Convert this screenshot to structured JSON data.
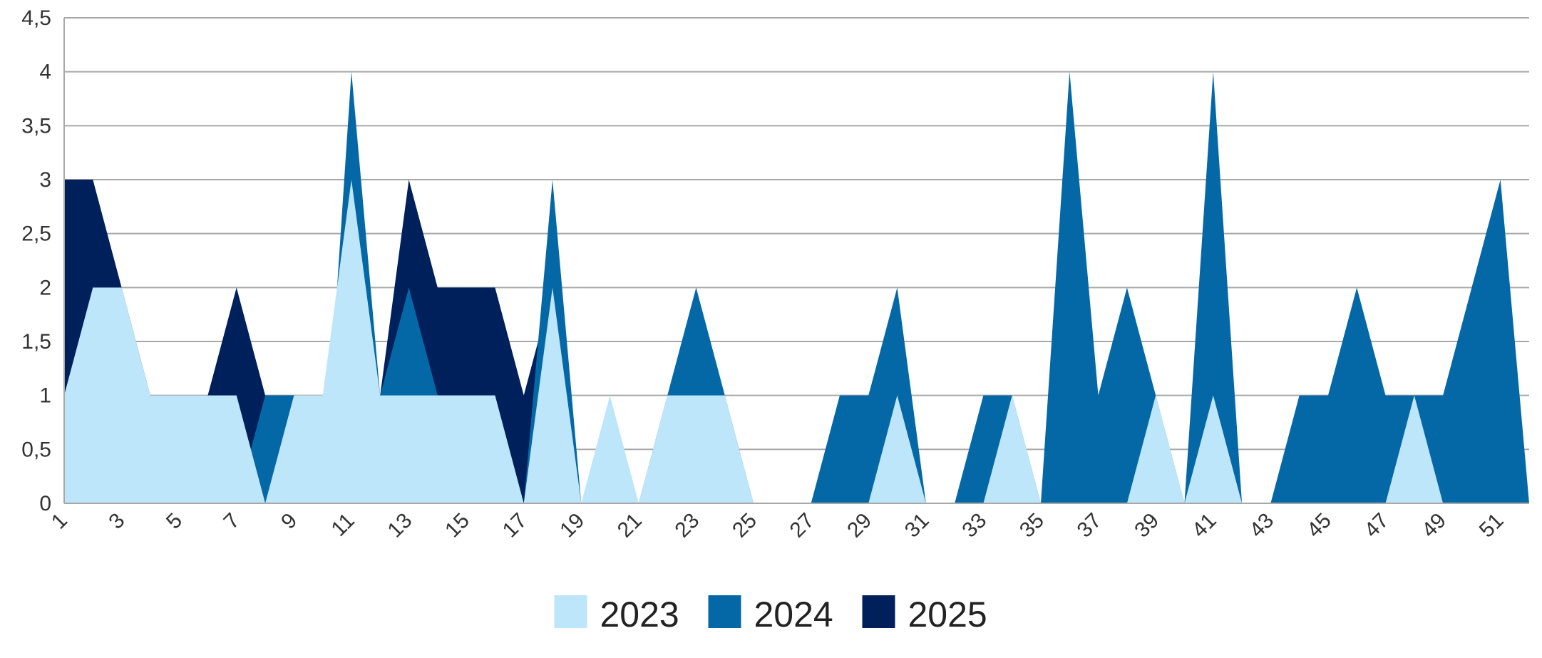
{
  "chart_data": {
    "type": "area",
    "title": "",
    "xlabel": "",
    "ylabel": "",
    "x": [
      1,
      2,
      3,
      4,
      5,
      6,
      7,
      8,
      9,
      10,
      11,
      12,
      13,
      14,
      15,
      16,
      17,
      18,
      19,
      20,
      21,
      22,
      23,
      24,
      25,
      26,
      27,
      28,
      29,
      30,
      31,
      32,
      33,
      34,
      35,
      36,
      37,
      38,
      39,
      40,
      41,
      42,
      43,
      44,
      45,
      46,
      47,
      48,
      49,
      50,
      51,
      52
    ],
    "x_tick_labels": [
      "1",
      "3",
      "5",
      "7",
      "9",
      "11",
      "13",
      "15",
      "17",
      "19",
      "21",
      "23",
      "25",
      "27",
      "29",
      "31",
      "33",
      "35",
      "37",
      "39",
      "41",
      "43",
      "45",
      "47",
      "49",
      "51"
    ],
    "y_tick_labels": [
      "0",
      "0,5",
      "1",
      "1,5",
      "2",
      "2,5",
      "3",
      "3,5",
      "4",
      "4,5"
    ],
    "ylim": [
      0,
      4.5
    ],
    "grid": "horizontal",
    "legend_position": "bottom",
    "series": [
      {
        "name": "2023",
        "color": "#bde6fb",
        "values": [
          1,
          2,
          2,
          1,
          1,
          1,
          1,
          0,
          1,
          1,
          3,
          1,
          1,
          1,
          1,
          1,
          0,
          2,
          0,
          1,
          0,
          1,
          1,
          1,
          0,
          0,
          0,
          0,
          0,
          1,
          0,
          0,
          0,
          1,
          0,
          0,
          0,
          0,
          1,
          0,
          1,
          0,
          0,
          0,
          0,
          0,
          0,
          1,
          0,
          0,
          0,
          0
        ]
      },
      {
        "name": "2024",
        "color": "#0568a6",
        "values": [
          0,
          0,
          0,
          0,
          0,
          0,
          0,
          1,
          1,
          0,
          4,
          1,
          2,
          1,
          1,
          1,
          0,
          3,
          0,
          0,
          0,
          1,
          2,
          1,
          0,
          0,
          0,
          1,
          1,
          2,
          0,
          0,
          1,
          1,
          0,
          4,
          1,
          2,
          1,
          0,
          4,
          0,
          0,
          1,
          1,
          2,
          1,
          1,
          1,
          2,
          3,
          0
        ]
      },
      {
        "name": "2025",
        "color": "#00205b",
        "values": [
          3,
          3,
          2,
          1,
          1,
          1,
          2,
          1,
          1,
          0,
          0,
          1,
          3,
          2,
          2,
          2,
          1,
          2,
          0,
          0,
          0,
          0,
          0,
          0,
          0,
          0,
          0,
          0,
          0,
          0,
          0,
          0,
          0,
          0,
          0,
          0,
          0,
          0,
          0,
          0,
          0,
          0,
          0,
          0,
          0,
          0,
          0,
          0,
          0,
          0,
          0,
          0
        ]
      }
    ]
  }
}
